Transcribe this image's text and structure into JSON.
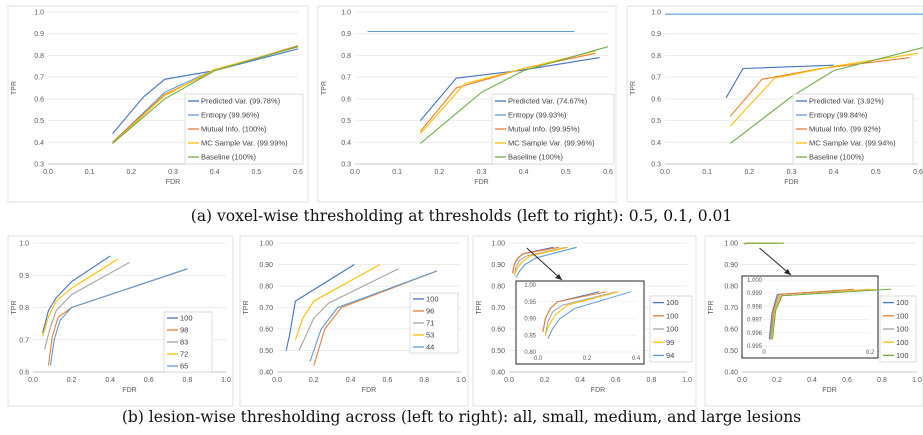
{
  "captions": {
    "a": "(a) voxel-wise thresholding at thresholds (left to right): 0.5, 0.1, 0.01",
    "b": "(b) lesion-wise thresholding across (left to right): all, small, medium, and large lesions"
  },
  "chart_data": [
    {
      "type": "line",
      "xlabel": "FDR",
      "ylabel": "TPR",
      "xlim": [
        0,
        0.6
      ],
      "ylim": [
        0.3,
        1.0
      ],
      "xticks": [
        "0.0",
        "0.1",
        "0.2",
        "0.3",
        "0.4",
        "0.5",
        "0.6"
      ],
      "yticks": [
        "0.3",
        "0.4",
        "0.5",
        "0.6",
        "0.7",
        "0.8",
        "0.9",
        "1.0"
      ],
      "legend": "bottom-right",
      "series": [
        {
          "name": "Predicted Var. (99.78%)",
          "color": "#4472C4",
          "x": [
            0.155,
            0.23,
            0.28,
            0.4,
            0.6
          ],
          "y": [
            0.44,
            0.61,
            0.69,
            0.73,
            0.83
          ]
        },
        {
          "name": "Entropy (99.96%)",
          "color": "#5B9BD5",
          "x": [
            0.155,
            0.28,
            0.4,
            0.6
          ],
          "y": [
            0.4,
            0.63,
            0.735,
            0.84
          ]
        },
        {
          "name": "Mutual Info. (100%)",
          "color": "#ED7D31",
          "x": [
            0.155,
            0.28,
            0.4,
            0.6
          ],
          "y": [
            0.4,
            0.62,
            0.73,
            0.845
          ]
        },
        {
          "name": "MC Sample Var. (99.99%)",
          "color": "#FFC000",
          "x": [
            0.155,
            0.28,
            0.4,
            0.6
          ],
          "y": [
            0.395,
            0.615,
            0.735,
            0.84
          ]
        },
        {
          "name": "Baseline (100%)",
          "color": "#70AD47",
          "x": [
            0.155,
            0.28,
            0.4,
            0.6
          ],
          "y": [
            0.395,
            0.6,
            0.73,
            0.84
          ]
        }
      ]
    },
    {
      "type": "line",
      "xlabel": "FDR",
      "ylabel": "TPR",
      "xlim": [
        0,
        0.6
      ],
      "ylim": [
        0.3,
        1.0
      ],
      "xticks": [
        "0.0",
        "0.1",
        "0.2",
        "0.3",
        "0.4",
        "0.5",
        "0.6"
      ],
      "yticks": [
        "0.3",
        "0.4",
        "0.5",
        "0.6",
        "0.7",
        "0.8",
        "0.9",
        "1.0"
      ],
      "legend": "bottom-right",
      "series": [
        {
          "name": "Predicted Var. (74.67%)",
          "color": "#4472C4",
          "x": [
            0.155,
            0.24,
            0.39,
            0.58
          ],
          "y": [
            0.5,
            0.695,
            0.73,
            0.79
          ]
        },
        {
          "name": "Entropy (99.93%)",
          "color": "#5B9BD5",
          "x": [
            0.03,
            0.52
          ],
          "y": [
            0.91,
            0.91
          ]
        },
        {
          "name": "Mutual Info. (99.95%)",
          "color": "#ED7D31",
          "x": [
            0.155,
            0.24,
            0.4,
            0.57
          ],
          "y": [
            0.45,
            0.65,
            0.74,
            0.81
          ]
        },
        {
          "name": "MC Sample Var. (99.96%)",
          "color": "#FFC000",
          "x": [
            0.155,
            0.26,
            0.4,
            0.57
          ],
          "y": [
            0.44,
            0.67,
            0.74,
            0.82
          ]
        },
        {
          "name": "Baseline (100%)",
          "color": "#70AD47",
          "x": [
            0.155,
            0.3,
            0.4,
            0.6
          ],
          "y": [
            0.395,
            0.63,
            0.73,
            0.84
          ]
        }
      ]
    },
    {
      "type": "line",
      "xlabel": "FDR",
      "ylabel": "TPR",
      "xlim": [
        0,
        0.6
      ],
      "ylim": [
        0.3,
        1.0
      ],
      "xticks": [
        "0.0",
        "0.1",
        "0.2",
        "0.3",
        "0.4",
        "0.5",
        "0.6"
      ],
      "yticks": [
        "0.3",
        "0.4",
        "0.5",
        "0.6",
        "0.7",
        "0.8",
        "0.9",
        "1.0"
      ],
      "legend": "bottom-right",
      "series": [
        {
          "name": "Predicted Var. (3.92%)",
          "color": "#4472C4",
          "x": [
            0.145,
            0.185,
            0.4
          ],
          "y": [
            0.605,
            0.74,
            0.755
          ]
        },
        {
          "name": "Entropy (99.84%)",
          "color": "#5B9BD5",
          "x": [
            0.0,
            0.62
          ],
          "y": [
            0.99,
            0.99
          ]
        },
        {
          "name": "Mutual Info. (99.92%)",
          "color": "#ED7D31",
          "x": [
            0.155,
            0.23,
            0.37,
            0.58
          ],
          "y": [
            0.52,
            0.69,
            0.74,
            0.79
          ]
        },
        {
          "name": "MC Sample Var. (99.94%)",
          "color": "#FFC000",
          "x": [
            0.155,
            0.26,
            0.4,
            0.6
          ],
          "y": [
            0.475,
            0.695,
            0.75,
            0.81
          ]
        },
        {
          "name": "Baseline (100%)",
          "color": "#70AD47",
          "x": [
            0.155,
            0.3,
            0.4,
            0.62
          ],
          "y": [
            0.395,
            0.61,
            0.73,
            0.84
          ]
        }
      ]
    },
    {
      "type": "line",
      "xlabel": "FDR",
      "ylabel": "TPR",
      "xlim": [
        0,
        1.0
      ],
      "ylim": [
        0.6,
        1.0
      ],
      "xticks": [
        "0.0",
        "0.2",
        "0.4",
        "0.6",
        "0.8",
        "1.0"
      ],
      "yticks": [
        "0.6",
        "0.7",
        "0.8",
        "0.9",
        "1.0"
      ],
      "legend": "bottom-right",
      "series": [
        {
          "name": "100",
          "color": "#4472C4",
          "x": [
            0.05,
            0.08,
            0.12,
            0.2,
            0.4
          ],
          "y": [
            0.72,
            0.79,
            0.83,
            0.88,
            0.96
          ]
        },
        {
          "name": "98",
          "color": "#ED7D31",
          "x": [
            0.08,
            0.1,
            0.13,
            0.2,
            0.8
          ],
          "y": [
            0.62,
            0.71,
            0.77,
            0.8,
            0.92
          ]
        },
        {
          "name": "83",
          "color": "#A5A5A5",
          "x": [
            0.06,
            0.09,
            0.12,
            0.2,
            0.5
          ],
          "y": [
            0.67,
            0.74,
            0.79,
            0.84,
            0.94
          ]
        },
        {
          "name": "72",
          "color": "#FFC000",
          "x": [
            0.05,
            0.08,
            0.12,
            0.2,
            0.44
          ],
          "y": [
            0.71,
            0.77,
            0.82,
            0.86,
            0.95
          ]
        },
        {
          "name": "65",
          "color": "#5B9BD5",
          "x": [
            0.09,
            0.11,
            0.14,
            0.2,
            0.8
          ],
          "y": [
            0.62,
            0.7,
            0.76,
            0.8,
            0.92
          ]
        }
      ]
    },
    {
      "type": "line",
      "xlabel": "FDR",
      "ylabel": "TPR",
      "xlim": [
        0,
        1.0
      ],
      "ylim": [
        0.4,
        1.0
      ],
      "xticks": [
        "0.0",
        "0.2",
        "0.4",
        "0.6",
        "0.8",
        "1.0"
      ],
      "yticks": [
        "0.40",
        "0.50",
        "0.60",
        "0.70",
        "0.80",
        "0.90",
        "1.00"
      ],
      "legend": "bottom-right",
      "series": [
        {
          "name": "100",
          "color": "#4472C4",
          "x": [
            0.05,
            0.07,
            0.1,
            0.42
          ],
          "y": [
            0.5,
            0.58,
            0.73,
            0.9
          ]
        },
        {
          "name": "96",
          "color": "#ED7D31",
          "x": [
            0.2,
            0.26,
            0.35,
            0.87
          ],
          "y": [
            0.43,
            0.6,
            0.7,
            0.87
          ]
        },
        {
          "name": "71",
          "color": "#A5A5A5",
          "x": [
            0.12,
            0.2,
            0.28,
            0.66
          ],
          "y": [
            0.5,
            0.65,
            0.72,
            0.88
          ]
        },
        {
          "name": "53",
          "color": "#FFC000",
          "x": [
            0.1,
            0.14,
            0.2,
            0.56
          ],
          "y": [
            0.55,
            0.65,
            0.73,
            0.9
          ]
        },
        {
          "name": "44",
          "color": "#5B9BD5",
          "x": [
            0.18,
            0.24,
            0.33,
            0.87
          ],
          "y": [
            0.45,
            0.6,
            0.7,
            0.87
          ]
        }
      ]
    },
    {
      "type": "line",
      "xlabel": "FDR",
      "ylabel": "TPR",
      "xlim": [
        0,
        1.0
      ],
      "ylim": [
        0.4,
        1.0
      ],
      "xticks": [
        "0.0",
        "0.2",
        "0.4",
        "0.6",
        "0.8",
        "1.0"
      ],
      "yticks": [
        "0.40",
        "0.50",
        "0.60",
        "0.70",
        "0.80",
        "0.90",
        "1.00"
      ],
      "legend": "bottom-right",
      "inset": {
        "xlim": [
          0,
          0.4
        ],
        "ylim": [
          0.8,
          1.0
        ],
        "xticks": [
          "0.0",
          "0.2",
          "0.4"
        ],
        "yticks": [
          "0.80",
          "0.85",
          "0.90",
          "0.95",
          "1.00"
        ]
      },
      "series": [
        {
          "name": "100",
          "color": "#4472C4",
          "x": [
            0.02,
            0.03,
            0.05,
            0.08,
            0.25
          ],
          "y": [
            0.86,
            0.9,
            0.93,
            0.95,
            0.98
          ]
        },
        {
          "name": "100",
          "color": "#ED7D31",
          "x": [
            0.02,
            0.03,
            0.05,
            0.08,
            0.28
          ],
          "y": [
            0.86,
            0.9,
            0.93,
            0.95,
            0.98
          ]
        },
        {
          "name": "100",
          "color": "#A5A5A5",
          "x": [
            0.03,
            0.04,
            0.06,
            0.1,
            0.32
          ],
          "y": [
            0.85,
            0.89,
            0.92,
            0.94,
            0.98
          ]
        },
        {
          "name": "99",
          "color": "#FFC000",
          "x": [
            0.03,
            0.045,
            0.07,
            0.12,
            0.33
          ],
          "y": [
            0.85,
            0.88,
            0.91,
            0.94,
            0.98
          ]
        },
        {
          "name": "94",
          "color": "#5B9BD5",
          "x": [
            0.04,
            0.06,
            0.09,
            0.15,
            0.38
          ],
          "y": [
            0.84,
            0.87,
            0.9,
            0.93,
            0.98
          ]
        }
      ]
    },
    {
      "type": "line",
      "xlabel": "FDR",
      "ylabel": "TPR",
      "xlim": [
        0,
        1.0
      ],
      "ylim": [
        0.4,
        1.0
      ],
      "xticks": [
        "0.0",
        "0.2",
        "0.4",
        "0.6",
        "0.8",
        "1.0"
      ],
      "yticks": [
        "0.40",
        "0.50",
        "0.60",
        "0.70",
        "0.80",
        "0.90",
        "1.00"
      ],
      "legend": "bottom-right",
      "inset": {
        "xlim": [
          0,
          0.2
        ],
        "ylim": [
          0.995,
          1.0
        ],
        "xticks": [
          "0",
          "0.2"
        ],
        "yticks": [
          "0.995",
          "0.996",
          "0.997",
          "0.998",
          "0.999",
          "1.000"
        ]
      },
      "series": [
        {
          "name": "100",
          "color": "#4472C4",
          "x": [
            0.01,
            0.015,
            0.025,
            0.14
          ],
          "y": [
            0.9955,
            0.9975,
            0.9989,
            0.9992
          ]
        },
        {
          "name": "100",
          "color": "#ED7D31",
          "x": [
            0.012,
            0.017,
            0.028,
            0.17
          ],
          "y": [
            0.9955,
            0.9976,
            0.9989,
            0.9993
          ]
        },
        {
          "name": "100",
          "color": "#A5A5A5",
          "x": [
            0.013,
            0.019,
            0.03,
            0.2
          ],
          "y": [
            0.9955,
            0.9976,
            0.9988,
            0.9993
          ]
        },
        {
          "name": "100",
          "color": "#FFC000",
          "x": [
            0.015,
            0.021,
            0.032,
            0.21
          ],
          "y": [
            0.9955,
            0.9977,
            0.9988,
            0.9993
          ]
        },
        {
          "name": "100",
          "color": "#70AD47",
          "x": [
            0.016,
            0.022,
            0.034,
            0.24
          ],
          "y": [
            0.9955,
            0.9977,
            0.9988,
            0.9993
          ]
        }
      ]
    }
  ]
}
